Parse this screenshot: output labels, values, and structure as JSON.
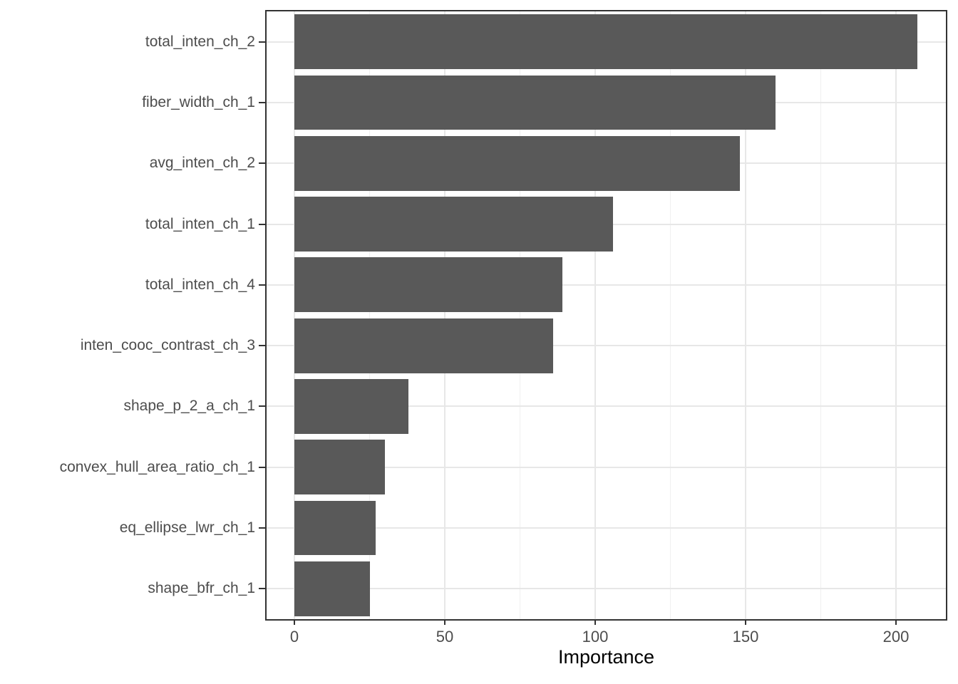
{
  "chart_data": {
    "type": "bar",
    "orientation": "horizontal",
    "title": "",
    "xlabel": "Importance",
    "ylabel": "",
    "categories": [
      "total_inten_ch_2",
      "fiber_width_ch_1",
      "avg_inten_ch_2",
      "total_inten_ch_1",
      "total_inten_ch_4",
      "inten_cooc_contrast_ch_3",
      "shape_p_2_a_ch_1",
      "convex_hull_area_ratio_ch_1",
      "eq_ellipse_lwr_ch_1",
      "shape_bfr_ch_1"
    ],
    "values": [
      207,
      160,
      148,
      106,
      89,
      86,
      38,
      30,
      27,
      25
    ],
    "x_ticks": [
      0,
      50,
      100,
      150,
      200
    ],
    "x_minor_ticks": [
      25,
      75,
      125,
      175
    ],
    "xlim": [
      0,
      216.6
    ],
    "grid": "on",
    "legend": "none",
    "colors": {
      "bar": "#595959",
      "grid_major": "#e7e7e7",
      "grid_minor": "#f0f0f0",
      "panel_border": "#333333",
      "axis_tick": "#333333",
      "tick_label": "#4d4d4d",
      "axis_title": "#000000",
      "background": "#ffffff"
    }
  }
}
